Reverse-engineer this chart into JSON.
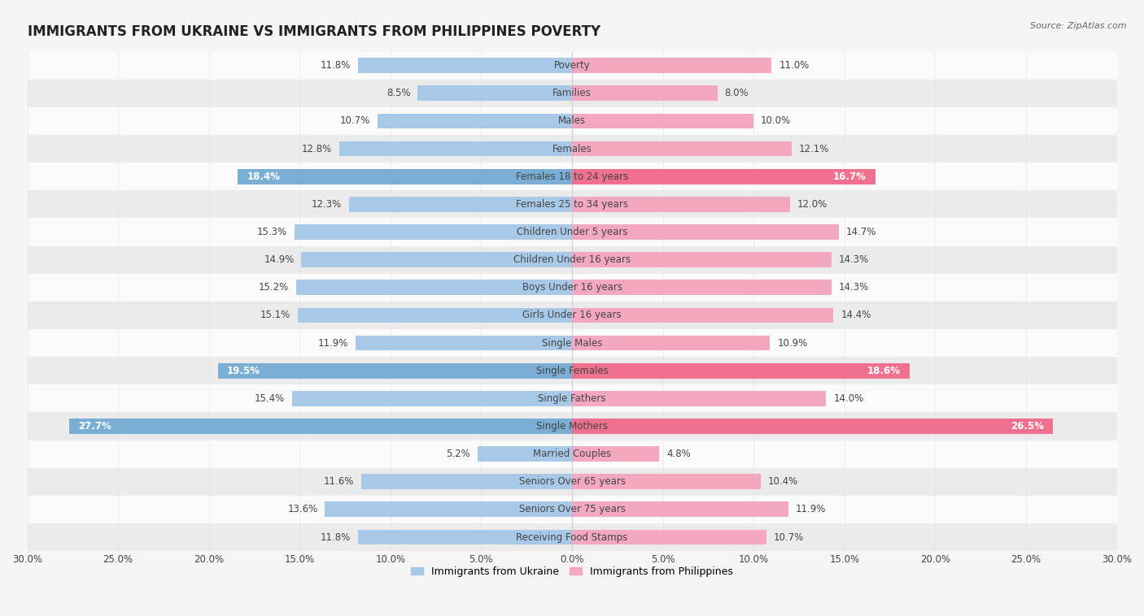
{
  "title": "IMMIGRANTS FROM UKRAINE VS IMMIGRANTS FROM PHILIPPINES POVERTY",
  "source": "Source: ZipAtlas.com",
  "categories": [
    "Poverty",
    "Families",
    "Males",
    "Females",
    "Females 18 to 24 years",
    "Females 25 to 34 years",
    "Children Under 5 years",
    "Children Under 16 years",
    "Boys Under 16 years",
    "Girls Under 16 years",
    "Single Males",
    "Single Females",
    "Single Fathers",
    "Single Mothers",
    "Married Couples",
    "Seniors Over 65 years",
    "Seniors Over 75 years",
    "Receiving Food Stamps"
  ],
  "ukraine_values": [
    11.8,
    8.5,
    10.7,
    12.8,
    18.4,
    12.3,
    15.3,
    14.9,
    15.2,
    15.1,
    11.9,
    19.5,
    15.4,
    27.7,
    5.2,
    11.6,
    13.6,
    11.8
  ],
  "philippines_values": [
    11.0,
    8.0,
    10.0,
    12.1,
    16.7,
    12.0,
    14.7,
    14.3,
    14.3,
    14.4,
    10.9,
    18.6,
    14.0,
    26.5,
    4.8,
    10.4,
    11.9,
    10.7
  ],
  "ukraine_color": "#a8c8e8",
  "philippines_color": "#f4a8c0",
  "ukraine_highlight_color": "#7aaed4",
  "philippines_highlight_color": "#f07090",
  "highlight_rows": [
    4,
    11,
    13
  ],
  "background_color": "#f5f5f5",
  "row_light_color": "#fafafa",
  "row_dark_color": "#ebebeb",
  "axis_limit": 30.0,
  "bar_height": 0.55,
  "legend_ukraine": "Immigrants from Ukraine",
  "legend_philippines": "Immigrants from Philippines",
  "title_fontsize": 12,
  "label_fontsize": 8.5,
  "value_fontsize": 8.5,
  "tick_fontsize": 8.5
}
